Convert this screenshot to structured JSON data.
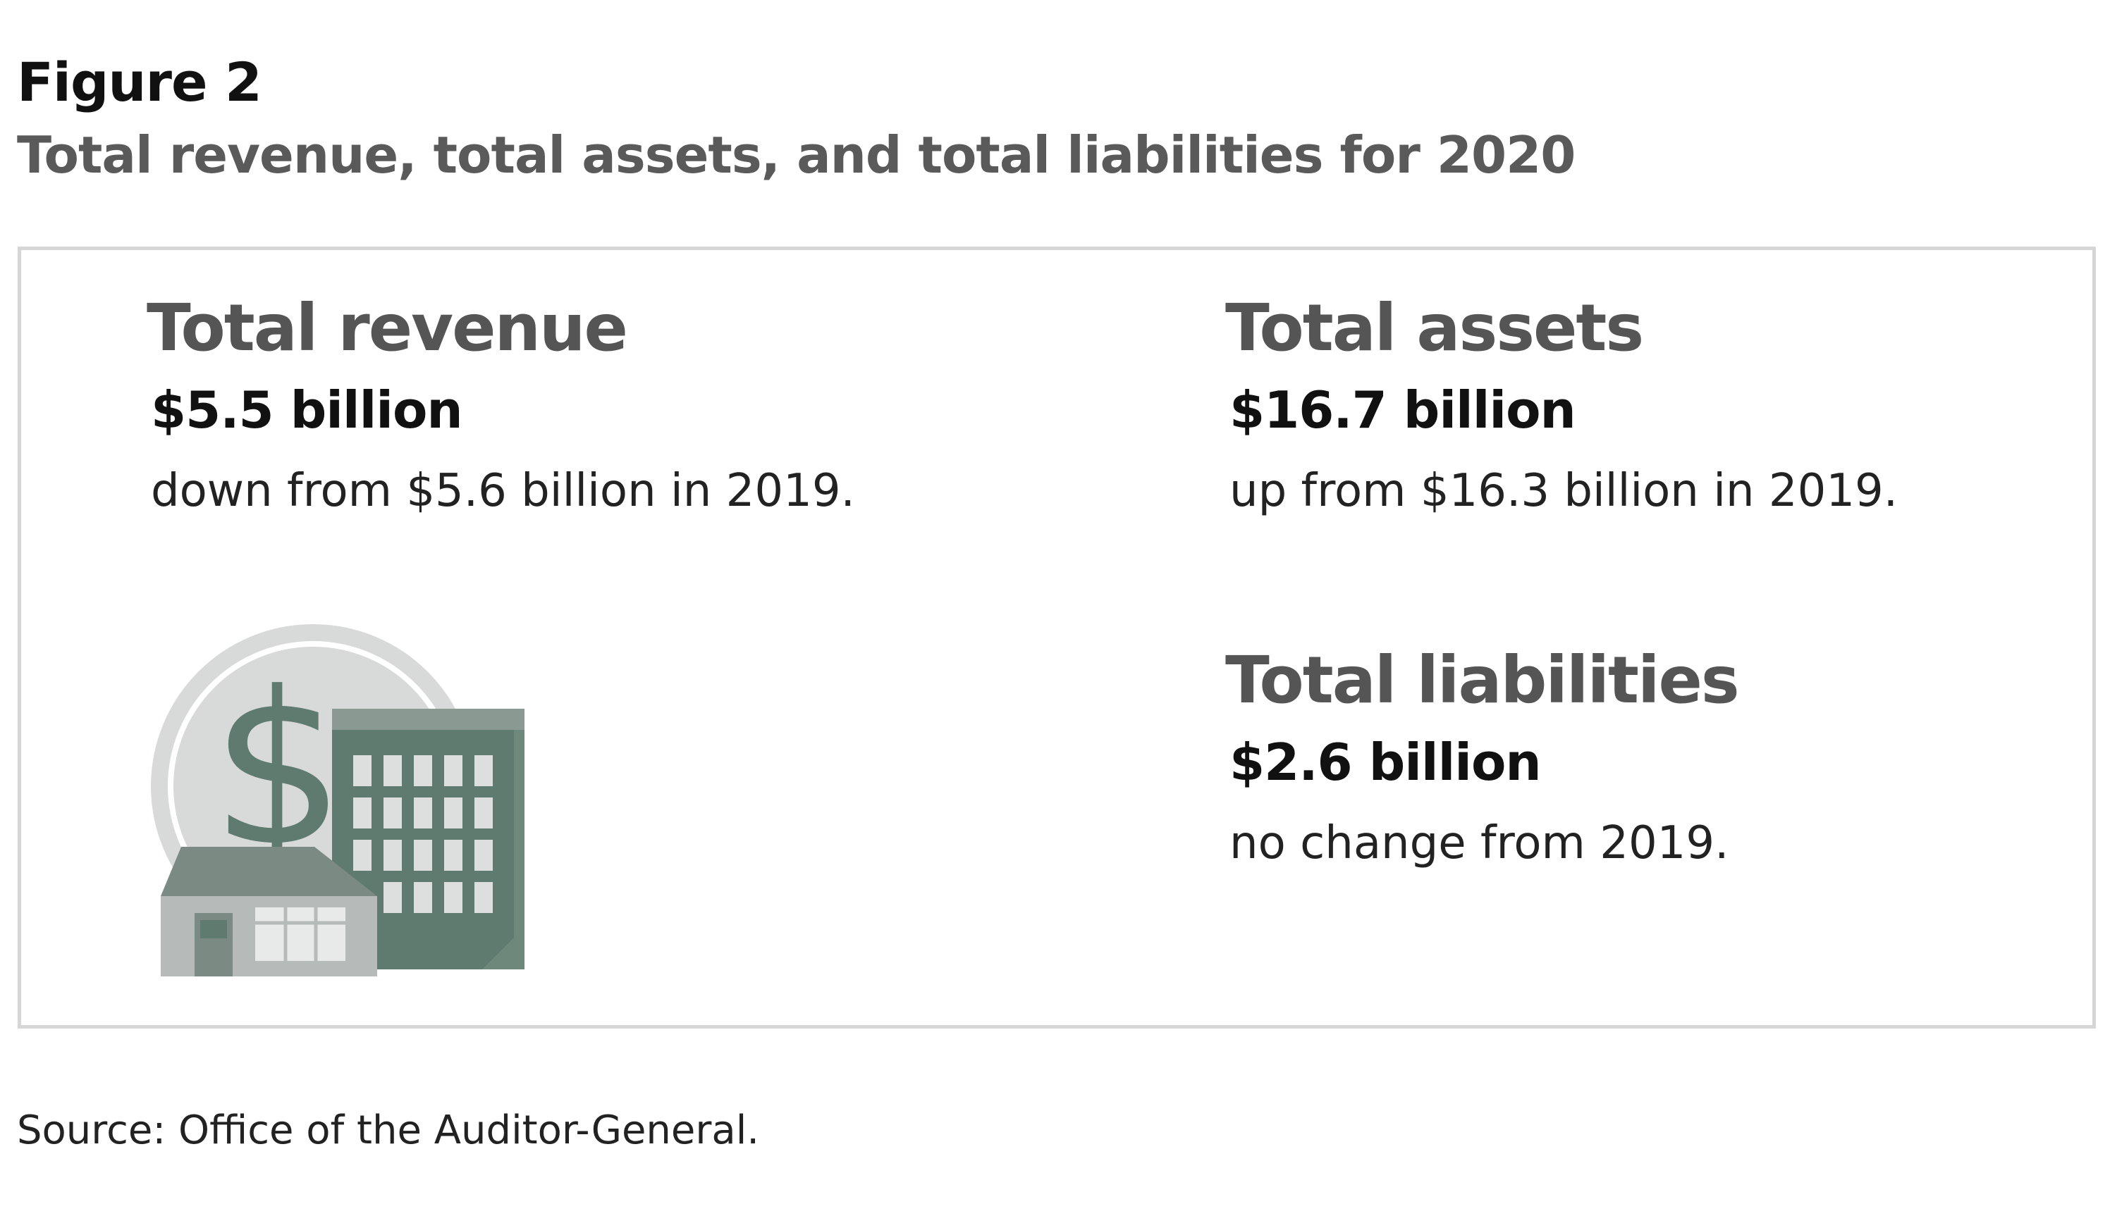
{
  "figure": {
    "label": "Figure 2",
    "title": "Total revenue, total assets, and total liabilities for 2020"
  },
  "metrics": {
    "revenue": {
      "heading": "Total revenue",
      "value": "$5.5 billion",
      "change": "down from $5.6 billion in 2019."
    },
    "assets": {
      "heading": "Total assets",
      "value": "$16.7 billion",
      "change": "up from $16.3 billion in 2019."
    },
    "liabilities": {
      "heading": "Total liabilities",
      "value": "$2.6 billion",
      "change": "no change from 2019."
    }
  },
  "illustration": {
    "icon": "coin-and-buildings-icon",
    "colors": {
      "coin": "#d7dad8",
      "dollar_sign": "#5f7a6e",
      "building": "#5f7a6e",
      "building_roof": "#8a9a92",
      "window": "#dcdfdd",
      "house_wall": "#b6bab8",
      "house_roof": "#7b8a82"
    }
  },
  "source": "Source: Office of the Auditor-General."
}
